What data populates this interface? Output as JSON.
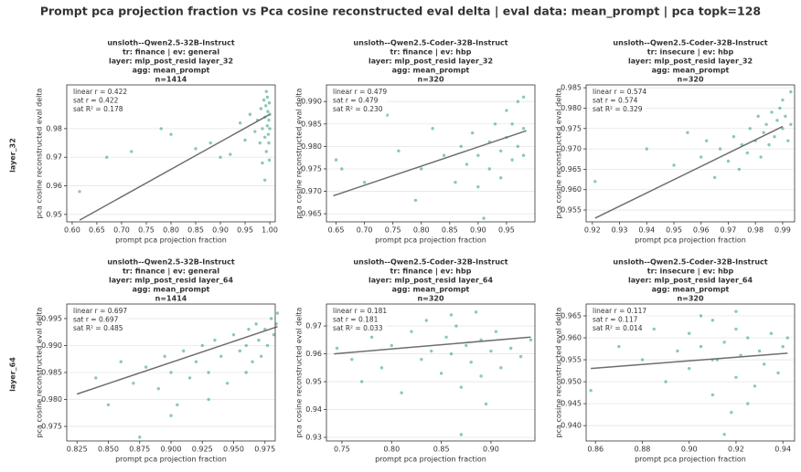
{
  "title": "Prompt pca projection fraction vs Pca cosine reconstructed eval delta | eval data: mean_prompt | pca topk=128",
  "row_labels": [
    "layer_32",
    "layer_64"
  ],
  "chart_data": [
    {
      "type": "scatter",
      "color": "#2a9d7a",
      "fit_color": "#6e6e6e",
      "grid": true,
      "title": [
        "unsloth--Qwen2.5-32B-Instruct",
        "tr: finance | ev: general",
        "layer: mlp_post_resid layer_32",
        "agg: mean_prompt",
        "n=1414"
      ],
      "xlabel": "prompt pca projection fraction",
      "ylabel": "pca cosine reconstructed eval delta",
      "annotation": [
        "linear r = 0.422",
        "sat r = 0.422",
        "sat R² = 0.178"
      ],
      "xlim": [
        0.589,
        1.011
      ],
      "ylim": [
        0.9474,
        0.9953
      ],
      "xticks": [
        {
          "value": 0.6,
          "label": "0.60"
        },
        0.65,
        {
          "value": 0.7,
          "label": "0.70"
        },
        0.75,
        {
          "value": 0.8,
          "label": "0.80"
        },
        0.85,
        {
          "value": 0.9,
          "label": "0.90"
        },
        0.95,
        {
          "value": 1,
          "label": "1.00"
        }
      ],
      "yticks": [
        0.95,
        0.96,
        0.97,
        0.98
      ],
      "fit": {
        "x": [
          0.615,
          1.0
        ],
        "y": [
          0.948,
          0.985
        ]
      },
      "x": [
        0.615,
        0.67,
        0.72,
        0.78,
        0.8,
        0.85,
        0.88,
        0.9,
        0.92,
        0.94,
        0.95,
        0.96,
        0.97,
        0.975,
        0.98,
        0.982,
        0.985,
        0.988,
        0.99,
        0.99,
        0.992,
        0.993,
        0.995,
        0.995,
        0.996,
        0.997,
        0.998,
        0.998,
        0.999,
        0.999,
        1.0,
        1.0,
        0.985,
        0.99,
        0.993
      ],
      "y": [
        0.958,
        0.97,
        0.972,
        0.98,
        0.978,
        0.973,
        0.975,
        0.97,
        0.971,
        0.982,
        0.976,
        0.985,
        0.979,
        0.983,
        0.975,
        0.987,
        0.98,
        0.99,
        0.984,
        0.977,
        0.988,
        0.972,
        0.981,
        0.991,
        0.986,
        0.978,
        0.983,
        0.975,
        0.989,
        0.969,
        0.98,
        0.985,
        0.968,
        0.962,
        0.993
      ]
    },
    {
      "type": "scatter",
      "color": "#2a9d7a",
      "fit_color": "#6e6e6e",
      "grid": true,
      "title": [
        "unsloth--Qwen2.5-Coder-32B-Instruct",
        "tr: finance | ev: hbp",
        "layer: mlp_post_resid layer_32",
        "agg: mean_prompt",
        "n=320"
      ],
      "xlabel": "prompt pca projection fraction",
      "ylabel": "pca cosine reconstructed eval delta",
      "annotation": [
        "linear r = 0.479",
        "sat r = 0.479",
        "sat R² = 0.230"
      ],
      "xlim": [
        0.633,
        1.0
      ],
      "ylim": [
        0.9632,
        0.9937
      ],
      "xticks": [
        0.65,
        {
          "value": 0.7,
          "label": "0.70"
        },
        0.75,
        {
          "value": 0.8,
          "label": "0.80"
        },
        0.85,
        {
          "value": 0.9,
          "label": "0.90"
        },
        0.95
      ],
      "yticks": [
        0.965,
        {
          "value": 0.97,
          "label": "0.970"
        },
        0.975,
        {
          "value": 0.98,
          "label": "0.980"
        },
        0.985,
        {
          "value": 0.99,
          "label": "0.990"
        }
      ],
      "fit": {
        "x": [
          0.645,
          0.985
        ],
        "y": [
          0.969,
          0.9835
        ]
      },
      "x": [
        0.65,
        0.66,
        0.7,
        0.74,
        0.76,
        0.79,
        0.8,
        0.82,
        0.84,
        0.86,
        0.87,
        0.88,
        0.89,
        0.9,
        0.9,
        0.91,
        0.92,
        0.92,
        0.93,
        0.94,
        0.94,
        0.95,
        0.95,
        0.96,
        0.96,
        0.97,
        0.97,
        0.98,
        0.98,
        0.98
      ],
      "y": [
        0.977,
        0.975,
        0.972,
        0.987,
        0.979,
        0.968,
        0.975,
        0.984,
        0.978,
        0.972,
        0.98,
        0.976,
        0.983,
        0.971,
        0.978,
        0.964,
        0.981,
        0.975,
        0.985,
        0.979,
        0.973,
        0.982,
        0.988,
        0.977,
        0.985,
        0.98,
        0.99,
        0.984,
        0.978,
        0.991
      ]
    },
    {
      "type": "scatter",
      "color": "#2a9d7a",
      "fit_color": "#6e6e6e",
      "grid": true,
      "title": [
        "unsloth--Qwen2.5-Coder-32B-Instruct",
        "tr: insecure | ev: hbp",
        "layer: mlp_post_resid layer_32",
        "agg: mean_prompt",
        "n=320"
      ],
      "xlabel": "prompt pca projection fraction",
      "ylabel": "pca cosine reconstructed eval delta",
      "annotation": [
        "linear r = 0.574",
        "sat r = 0.574",
        "sat R² = 0.329"
      ],
      "xlim": [
        0.9177,
        0.9944
      ],
      "ylim": [
        0.9521,
        0.9857
      ],
      "xticks": [
        0.92,
        0.93,
        0.94,
        0.95,
        0.96,
        0.97,
        0.98,
        0.99
      ],
      "yticks": [
        0.955,
        {
          "value": 0.96,
          "label": "0.960"
        },
        0.965,
        {
          "value": 0.97,
          "label": "0.970"
        },
        0.975,
        {
          "value": 0.98,
          "label": "0.980"
        },
        0.985
      ],
      "fit": {
        "x": [
          0.921,
          0.99
        ],
        "y": [
          0.953,
          0.9755
        ]
      },
      "x": [
        0.921,
        0.94,
        0.95,
        0.955,
        0.96,
        0.962,
        0.965,
        0.967,
        0.97,
        0.972,
        0.974,
        0.975,
        0.977,
        0.978,
        0.98,
        0.981,
        0.982,
        0.983,
        0.984,
        0.985,
        0.986,
        0.987,
        0.988,
        0.989,
        0.99,
        0.99,
        0.991,
        0.992,
        0.993,
        0.993
      ],
      "y": [
        0.962,
        0.97,
        0.966,
        0.974,
        0.968,
        0.972,
        0.963,
        0.97,
        0.967,
        0.973,
        0.965,
        0.971,
        0.969,
        0.975,
        0.972,
        0.978,
        0.968,
        0.974,
        0.976,
        0.971,
        0.979,
        0.973,
        0.977,
        0.98,
        0.975,
        0.982,
        0.978,
        0.972,
        0.984,
        0.976
      ]
    },
    {
      "type": "scatter",
      "color": "#2a9d7a",
      "fit_color": "#6e6e6e",
      "grid": true,
      "title": [
        "unsloth--Qwen2.5-32B-Instruct",
        "tr: finance | ev: general",
        "layer: mlp_post_resid layer_64",
        "agg: mean_prompt",
        "n=1414"
      ],
      "xlabel": "prompt pca projection fraction",
      "ylabel": "pca cosine reconstructed eval delta",
      "annotation": [
        "linear r = 0.697",
        "sat r = 0.697",
        "sat R² = 0.485"
      ],
      "xlim": [
        0.8168,
        0.9832
      ],
      "ylim": [
        0.9723,
        0.9977
      ],
      "xticks": [
        0.825,
        {
          "value": 0.85,
          "label": "0.850"
        },
        0.875,
        {
          "value": 0.9,
          "label": "0.900"
        },
        0.925,
        {
          "value": 0.95,
          "label": "0.950"
        },
        0.975
      ],
      "yticks": [
        0.975,
        {
          "value": 0.98,
          "label": "0.980"
        },
        0.985,
        {
          "value": 0.99,
          "label": "0.990"
        },
        0.995
      ],
      "fit": {
        "x": [
          0.825,
          0.985
        ],
        "y": [
          0.981,
          0.9935
        ]
      },
      "x": [
        0.84,
        0.85,
        0.86,
        0.87,
        0.875,
        0.88,
        0.89,
        0.895,
        0.9,
        0.905,
        0.91,
        0.915,
        0.92,
        0.925,
        0.93,
        0.935,
        0.94,
        0.945,
        0.95,
        0.955,
        0.96,
        0.962,
        0.965,
        0.968,
        0.97,
        0.972,
        0.975,
        0.977,
        0.98,
        0.982,
        0.984,
        0.985,
        0.9,
        0.93,
        0.96
      ],
      "y": [
        0.984,
        0.979,
        0.987,
        0.983,
        0.973,
        0.986,
        0.982,
        0.988,
        0.985,
        0.979,
        0.989,
        0.984,
        0.987,
        0.99,
        0.985,
        0.991,
        0.988,
        0.983,
        0.992,
        0.989,
        0.99,
        0.993,
        0.987,
        0.994,
        0.991,
        0.988,
        0.993,
        0.99,
        0.995,
        0.992,
        0.994,
        0.996,
        0.977,
        0.98,
        0.985
      ]
    },
    {
      "type": "scatter",
      "color": "#2a9d7a",
      "fit_color": "#6e6e6e",
      "grid": true,
      "title": [
        "unsloth--Qwen2.5-Coder-32B-Instruct",
        "tr: finance | ev: hbp",
        "layer: mlp_post_resid layer_64",
        "agg: mean_prompt",
        "n=320"
      ],
      "xlabel": "prompt pca projection fraction",
      "ylabel": "pca cosine reconstructed eval delta",
      "annotation": [
        "linear r = 0.181",
        "sat r = 0.181",
        "sat R² = 0.033"
      ],
      "xlim": [
        0.7344,
        0.9442
      ],
      "ylim": [
        0.9287,
        0.9779
      ],
      "xticks": [
        0.75,
        {
          "value": 0.8,
          "label": "0.80"
        },
        0.85,
        {
          "value": 0.9,
          "label": "0.90"
        }
      ],
      "yticks": [
        0.93,
        0.94,
        0.95,
        0.96,
        0.97
      ],
      "fit": {
        "x": [
          0.742,
          0.94
        ],
        "y": [
          0.96,
          0.966
        ]
      },
      "x": [
        0.745,
        0.76,
        0.77,
        0.78,
        0.79,
        0.8,
        0.81,
        0.82,
        0.83,
        0.835,
        0.84,
        0.85,
        0.855,
        0.86,
        0.865,
        0.87,
        0.875,
        0.88,
        0.885,
        0.89,
        0.895,
        0.9,
        0.905,
        0.91,
        0.92,
        0.93,
        0.94,
        0.87,
        0.89,
        0.86
      ],
      "y": [
        0.962,
        0.958,
        0.95,
        0.966,
        0.955,
        0.963,
        0.946,
        0.968,
        0.958,
        0.972,
        0.961,
        0.953,
        0.966,
        0.96,
        0.97,
        0.948,
        0.963,
        0.957,
        0.975,
        0.965,
        0.942,
        0.961,
        0.968,
        0.955,
        0.962,
        0.959,
        0.965,
        0.931,
        0.952,
        0.974
      ]
    },
    {
      "type": "scatter",
      "color": "#2a9d7a",
      "fit_color": "#6e6e6e",
      "grid": true,
      "title": [
        "unsloth--Qwen2.5-Coder-32B-Instruct",
        "tr: insecure | ev: hbp",
        "layer: mlp_post_resid layer_64",
        "agg: mean_prompt",
        "n=320"
      ],
      "xlabel": "prompt pca projection fraction",
      "ylabel": "pca cosine reconstructed eval delta",
      "annotation": [
        "linear r = 0.117",
        "sat r = 0.117",
        "sat R² = 0.014"
      ],
      "xlim": [
        0.856,
        0.945
      ],
      "ylim": [
        0.9365,
        0.9677
      ],
      "xticks": [
        0.86,
        0.88,
        {
          "value": 0.9,
          "label": "0.90"
        },
        0.92,
        0.94
      ],
      "yticks": [
        {
          "value": 0.94,
          "label": "0.940"
        },
        0.945,
        {
          "value": 0.95,
          "label": "0.950"
        },
        0.955,
        {
          "value": 0.96,
          "label": "0.960"
        },
        0.965
      ],
      "fit": {
        "x": [
          0.858,
          0.942
        ],
        "y": [
          0.953,
          0.9565
        ]
      },
      "x": [
        0.858,
        0.87,
        0.88,
        0.885,
        0.89,
        0.895,
        0.9,
        0.9,
        0.905,
        0.91,
        0.91,
        0.912,
        0.915,
        0.918,
        0.92,
        0.92,
        0.922,
        0.925,
        0.928,
        0.93,
        0.932,
        0.935,
        0.938,
        0.94,
        0.942,
        0.915,
        0.905,
        0.925,
        0.92,
        0.91
      ],
      "y": [
        0.948,
        0.958,
        0.955,
        0.962,
        0.95,
        0.957,
        0.961,
        0.953,
        0.958,
        0.964,
        0.947,
        0.955,
        0.959,
        0.943,
        0.962,
        0.951,
        0.956,
        0.96,
        0.949,
        0.957,
        0.954,
        0.961,
        0.952,
        0.958,
        0.96,
        0.938,
        0.965,
        0.945,
        0.966,
        0.955
      ]
    }
  ]
}
